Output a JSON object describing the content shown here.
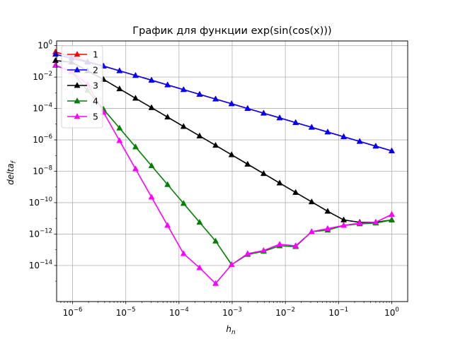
{
  "chart_data": {
    "type": "line",
    "title": "График для функции exp(sin(cos(x)))",
    "xlabel": "h_n",
    "ylabel": "delta_f",
    "xscale": "log",
    "yscale": "log",
    "xlim_log10": [
      -6.3,
      0.3
    ],
    "ylim_log10": [
      -16.3,
      0.3
    ],
    "grid": true,
    "legend_position": "top-left",
    "x_ticks": [
      {
        "base": "10",
        "exp": "−6",
        "value_log10": -6
      },
      {
        "base": "10",
        "exp": "−5",
        "value_log10": -5
      },
      {
        "base": "10",
        "exp": "−4",
        "value_log10": -4
      },
      {
        "base": "10",
        "exp": "−3",
        "value_log10": -3
      },
      {
        "base": "10",
        "exp": "−2",
        "value_log10": -2
      },
      {
        "base": "10",
        "exp": "−1",
        "value_log10": -1
      },
      {
        "base": "10",
        "exp": "0",
        "value_log10": 0
      }
    ],
    "y_ticks": [
      {
        "base": "10",
        "exp": "−14",
        "value_log10": -14
      },
      {
        "base": "10",
        "exp": "−12",
        "value_log10": -12
      },
      {
        "base": "10",
        "exp": "−10",
        "value_log10": -10
      },
      {
        "base": "10",
        "exp": "−8",
        "value_log10": -8
      },
      {
        "base": "10",
        "exp": "−6",
        "value_log10": -6
      },
      {
        "base": "10",
        "exp": "−4",
        "value_log10": -4
      },
      {
        "base": "10",
        "exp": "−2",
        "value_log10": -2
      },
      {
        "base": "10",
        "exp": "0",
        "value_log10": 0
      }
    ],
    "series": [
      {
        "name": "1",
        "color": "#ff0000",
        "y_log10": [
          -6.7,
          -6.4,
          -6.1,
          -5.8,
          -5.5,
          -5.2,
          -4.9,
          -4.6,
          -4.3,
          -4.0,
          -3.7,
          -3.4,
          -3.1,
          -2.8,
          -2.5,
          -2.2,
          -1.9,
          -1.6,
          -1.3,
          -1.0,
          -0.7,
          -0.4
        ]
      },
      {
        "name": "2",
        "color": "#0000ff",
        "y_log10": [
          -6.7,
          -6.4,
          -6.1,
          -5.8,
          -5.5,
          -5.2,
          -4.9,
          -4.6,
          -4.3,
          -4.0,
          -3.7,
          -3.4,
          -3.1,
          -2.8,
          -2.5,
          -2.2,
          -1.9,
          -1.6,
          -1.3,
          -1.05,
          -0.8,
          -0.55
        ]
      },
      {
        "name": "3",
        "color": "#000000",
        "y_log10": [
          -11.1,
          -11.25,
          -11.25,
          -11.1,
          -10.55,
          -9.95,
          -9.35,
          -8.75,
          -8.15,
          -7.55,
          -6.95,
          -6.35,
          -5.75,
          -5.15,
          -4.55,
          -3.95,
          -3.35,
          -2.75,
          -2.15,
          -1.6,
          -1.05,
          -0.95
        ]
      },
      {
        "name": "4",
        "color": "#008000",
        "y_log10": [
          -11.1,
          -11.3,
          -11.35,
          -11.45,
          -11.75,
          -11.85,
          -12.8,
          -12.75,
          -13.1,
          -13.3,
          -13.95,
          -12.45,
          -11.25,
          -10.05,
          -8.85,
          -7.65,
          -6.45,
          -5.25,
          -4.05,
          -2.85,
          -1.65,
          -1.25
        ]
      },
      {
        "name": "5",
        "color": "#ff00ff",
        "y_log10": [
          -10.75,
          -11.25,
          -11.3,
          -11.45,
          -11.65,
          -11.85,
          -12.75,
          -12.65,
          -13.05,
          -13.25,
          -13.95,
          -15.15,
          -14.15,
          -13.25,
          -11.45,
          -9.65,
          -7.85,
          -6.05,
          -4.25,
          -2.45,
          -1.65,
          -1.25
        ]
      }
    ]
  }
}
